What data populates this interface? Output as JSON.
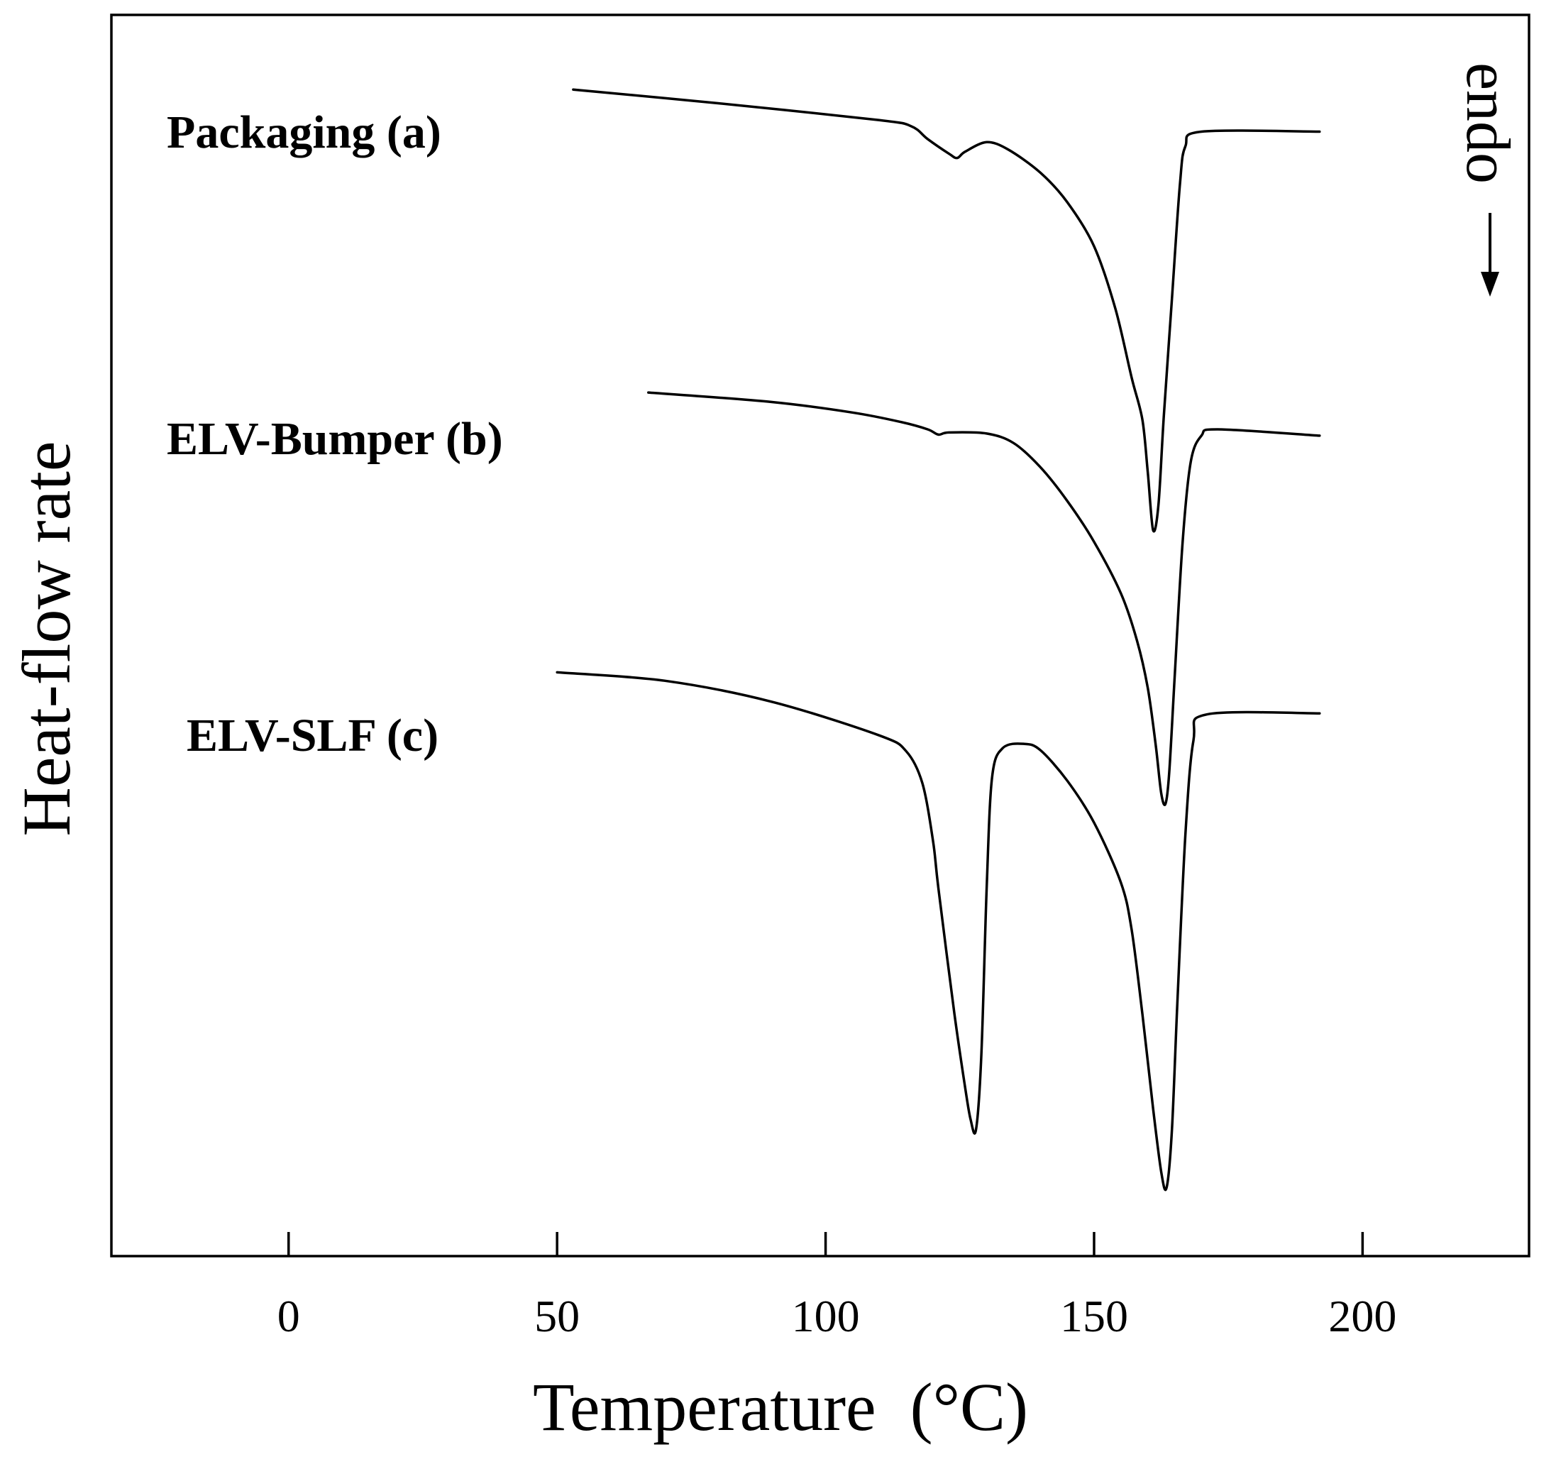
{
  "chart_data": {
    "type": "line",
    "xlabel": "Temperature  (°C)",
    "ylabel": "Heat-flow rate",
    "xlim": [
      -33,
      231
    ],
    "xticks": [
      0,
      50,
      100,
      150,
      200
    ],
    "yticks": [],
    "grid": false,
    "legend": "none",
    "direction_annotation": {
      "text": "endo",
      "direction": "down"
    },
    "series": [
      {
        "name": "Packaging (a)",
        "points": [
          [
            53,
            7.49
          ],
          [
            80,
            7.36
          ],
          [
            110,
            7.2
          ],
          [
            116,
            7.14
          ],
          [
            119,
            7.02
          ],
          [
            123,
            6.88
          ],
          [
            124.5,
            6.84
          ],
          [
            126,
            6.9
          ],
          [
            130,
            6.99
          ],
          [
            134,
            6.92
          ],
          [
            140,
            6.7
          ],
          [
            145,
            6.42
          ],
          [
            150,
            6.0
          ],
          [
            154,
            5.4
          ],
          [
            157,
            4.75
          ],
          [
            159,
            4.35
          ],
          [
            160,
            3.85
          ],
          [
            161,
            3.3
          ],
          [
            162,
            3.55
          ],
          [
            163,
            4.4
          ],
          [
            164.5,
            5.5
          ],
          [
            166,
            6.6
          ],
          [
            167,
            6.95
          ],
          [
            170,
            7.09
          ],
          [
            192,
            7.09
          ]
        ]
      },
      {
        "name": "ELV-Bumper (b)",
        "points": [
          [
            67,
            4.61
          ],
          [
            90,
            4.52
          ],
          [
            105,
            4.42
          ],
          [
            114,
            4.33
          ],
          [
            119,
            4.26
          ],
          [
            121,
            4.21
          ],
          [
            123,
            4.23
          ],
          [
            130,
            4.22
          ],
          [
            135,
            4.13
          ],
          [
            140,
            3.9
          ],
          [
            145,
            3.58
          ],
          [
            150,
            3.19
          ],
          [
            155,
            2.7
          ],
          [
            158,
            2.25
          ],
          [
            160,
            1.8
          ],
          [
            161.5,
            1.25
          ],
          [
            162.5,
            0.8
          ],
          [
            163.3,
            0.7
          ],
          [
            164,
            1.0
          ],
          [
            165,
            1.9
          ],
          [
            166.5,
            3.2
          ],
          [
            168,
            3.95
          ],
          [
            170,
            4.2
          ],
          [
            173,
            4.26
          ],
          [
            192,
            4.2
          ]
        ]
      },
      {
        "name": "ELV-SLF (c)",
        "points": [
          [
            50,
            1.95
          ],
          [
            70,
            1.87
          ],
          [
            90,
            1.67
          ],
          [
            110,
            1.35
          ],
          [
            115,
            1.2
          ],
          [
            118,
            0.9
          ],
          [
            120,
            0.35
          ],
          [
            121,
            -0.1
          ],
          [
            124,
            -1.3
          ],
          [
            126,
            -2.0
          ],
          [
            127,
            -2.3
          ],
          [
            128,
            -2.4
          ],
          [
            129,
            -1.7
          ],
          [
            130,
            -0.1
          ],
          [
            131,
            0.95
          ],
          [
            133,
            1.23
          ],
          [
            137,
            1.27
          ],
          [
            140,
            1.21
          ],
          [
            145,
            0.92
          ],
          [
            150,
            0.52
          ],
          [
            155,
            -0.05
          ],
          [
            157,
            -0.5
          ],
          [
            159,
            -1.3
          ],
          [
            161,
            -2.2
          ],
          [
            162.5,
            -2.8
          ],
          [
            163.5,
            -2.95
          ],
          [
            164.5,
            -2.4
          ],
          [
            165.5,
            -1.2
          ],
          [
            167,
            0.4
          ],
          [
            168.5,
            1.3
          ],
          [
            171,
            1.55
          ],
          [
            192,
            1.56
          ]
        ]
      }
    ]
  }
}
